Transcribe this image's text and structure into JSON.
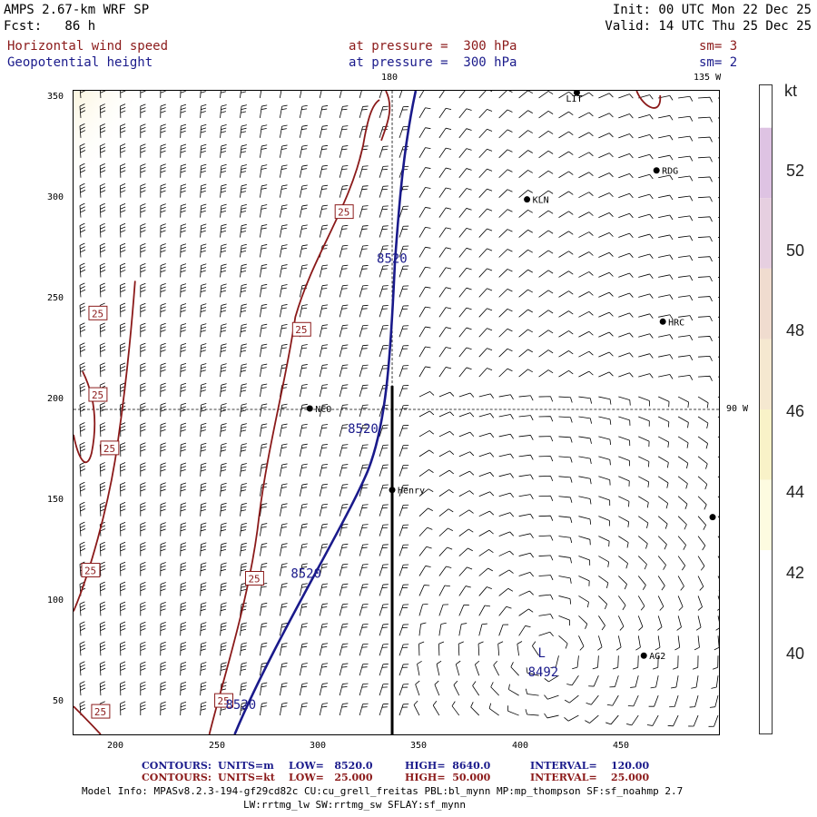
{
  "header": {
    "model_title": "AMPS 2.67-km WRF SP",
    "forecast": "Fcst:   86 h",
    "init": "Init: 00 UTC Mon 22 Dec 25",
    "valid": "Valid: 14 UTC Thu 25 Dec 25",
    "field1": "Horizontal wind speed",
    "field1_level": "at pressure =  300 hPa",
    "field1_smooth": "sm= 3",
    "field2": "Geopotential height",
    "field2_level": "at pressure =  300 hPa",
    "field2_smooth": "sm= 2"
  },
  "map": {
    "meridian_top_label": "180",
    "meridian_right_top_label": "135 W",
    "parallel_label": "90 W",
    "x_ticks": [
      "200",
      "250",
      "300",
      "350",
      "400",
      "450"
    ],
    "y_ticks": [
      "350",
      "300",
      "250",
      "200",
      "150",
      "100",
      "50"
    ],
    "stations": [
      {
        "name": "LIT"
      },
      {
        "name": "RDG"
      },
      {
        "name": "KLN"
      },
      {
        "name": "HRC"
      },
      {
        "name": "NCO"
      },
      {
        "name": "Henry"
      },
      {
        "name": "AG2"
      }
    ],
    "height_labels": [
      "8520",
      "8520",
      "8520",
      "8520"
    ],
    "speed_labels": [
      "25",
      "25",
      "25",
      "25",
      "25",
      "25",
      "25",
      "25",
      "25"
    ],
    "low_marker": "L",
    "low_value": "8492",
    "colors": {
      "height_contour": "#1a1a8b",
      "speed_contour": "#8b1a1a",
      "barb": "#000000"
    }
  },
  "colorbar": {
    "unit": "kt",
    "ticks": [
      "52",
      "50",
      "48",
      "46",
      "44",
      "42",
      "40"
    ],
    "colors": [
      "#ffffff",
      "#fdfbe0",
      "#f9f2c8",
      "#f5e8d0",
      "#f0dccf",
      "#e6cfe0",
      "#dec3e3"
    ]
  },
  "footer": {
    "contours_m": {
      "label": "CONTOURS:",
      "units": "UNITS=m",
      "low": "LOW=   8520.0",
      "high": "HIGH=  8640.0",
      "interval": "INTERVAL=    120.00"
    },
    "contours_kt": {
      "label": "CONTOURS:",
      "units": "UNITS=kt",
      "low": "LOW=   25.000",
      "high": "HIGH=  50.000",
      "interval": "INTERVAL=    25.000"
    },
    "model_info_1": "Model Info: MPASv8.2.3-194-gf29cd82c CU:cu_grell_freitas PBL:bl_mynn MP:mp_thompson SF:sf_noahmp 2.7",
    "model_info_2": "LW:rrtmg_lw SW:rrtmg_sw SFLAY:sf_mynn"
  }
}
